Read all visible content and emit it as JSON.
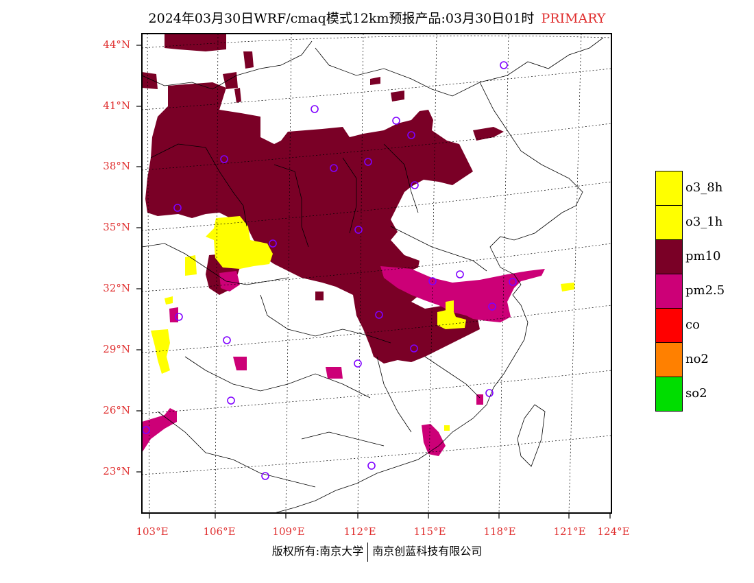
{
  "title": {
    "main": "2024年03月30日WRF/cmaq模式12km预报产品:03月30日01时",
    "tag": "PRIMARY",
    "tag_color": "#e03030"
  },
  "lat_labels": [
    "44°N",
    "41°N",
    "38°N",
    "35°N",
    "32°N",
    "29°N",
    "26°N",
    "23°N"
  ],
  "lon_labels": [
    "103°E",
    "106°E",
    "109°E",
    "112°E",
    "115°E",
    "118°E",
    "121°E",
    "124°E"
  ],
  "legend": [
    {
      "label": "o3_8h",
      "color": "#ffff00"
    },
    {
      "label": "o3_1h",
      "color": "#ffff00"
    },
    {
      "label": "pm10",
      "color": "#7a0026"
    },
    {
      "label": "pm2.5",
      "color": "#cc0077"
    },
    {
      "label": "co",
      "color": "#ff0000"
    },
    {
      "label": "no2",
      "color": "#ff8000"
    },
    {
      "label": "so2",
      "color": "#00dd00"
    }
  ],
  "copyright": {
    "left": "版权所有:南京大学",
    "right": "南京创蓝科技有限公司"
  },
  "station_icon": "circle-marker-icon"
}
